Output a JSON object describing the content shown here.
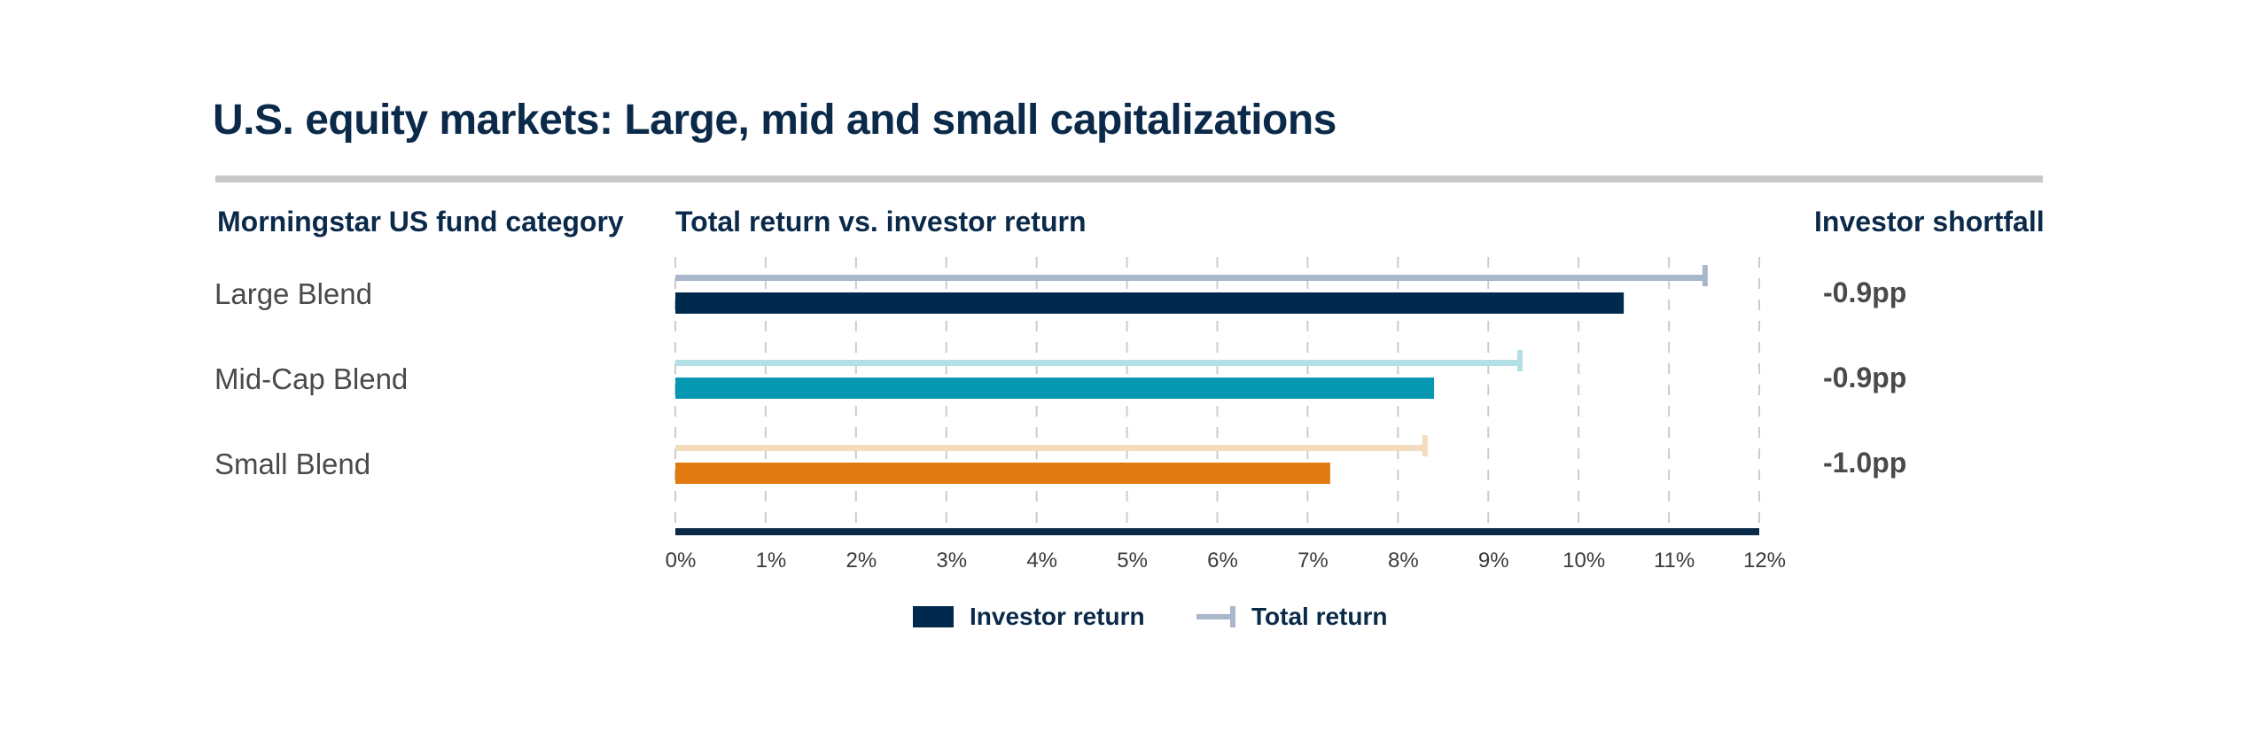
{
  "header": {
    "title": "U.S. equity markets: Large, mid and small capitalizations",
    "col_category": "Morningstar US fund category",
    "col_chart": "Total return vs. investor return",
    "col_shortfall": "Investor shortfall"
  },
  "legend": {
    "investor": "Investor return",
    "total": "Total return"
  },
  "chart_data": {
    "type": "bar",
    "orientation": "horizontal",
    "categories": [
      "Large Blend",
      "Mid-Cap Blend",
      "Small Blend"
    ],
    "series": [
      {
        "name": "Total return",
        "values": [
          11.4,
          9.35,
          8.3
        ]
      },
      {
        "name": "Investor return",
        "values": [
          10.5,
          8.4,
          7.25
        ]
      }
    ],
    "shortfall_labels": [
      "-0.9pp",
      "-0.9pp",
      "-1.0pp"
    ],
    "xlim": [
      0,
      12
    ],
    "x_ticks": [
      "0%",
      "1%",
      "2%",
      "3%",
      "4%",
      "5%",
      "6%",
      "7%",
      "8%",
      "9%",
      "10%",
      "11%",
      "12%"
    ],
    "grid": true,
    "legend_position": "bottom",
    "colors": {
      "investor": [
        "#002a4d",
        "#0697b3",
        "#e27a12"
      ],
      "total": [
        "#a9b7cb",
        "#b3dfe7",
        "#f4dcbf"
      ],
      "axis": "#0b2a4a",
      "grid": "#cccccc"
    }
  }
}
